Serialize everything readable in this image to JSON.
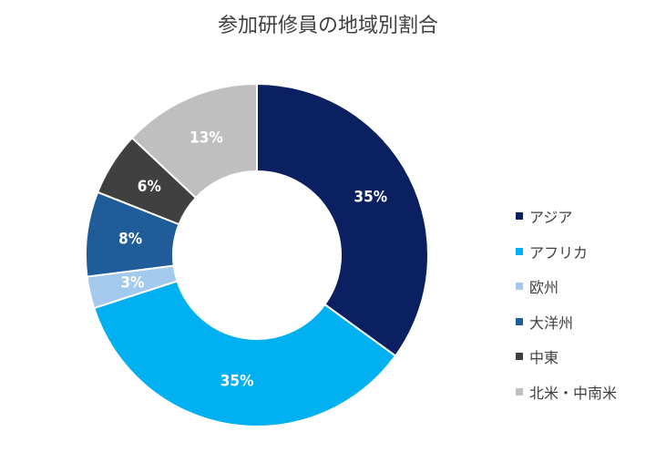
{
  "chart_data": {
    "type": "pie",
    "donut": true,
    "title": "参加研修員の地域別割合",
    "categories": [
      "アジア",
      "アフリカ",
      "欧州",
      "大洋州",
      "中東",
      "北米・中南米"
    ],
    "values": [
      35,
      35,
      3,
      8,
      6,
      13
    ],
    "labels": [
      "35%",
      "35%",
      "3%",
      "8%",
      "6%",
      "13%"
    ],
    "colors": [
      "#0b2061",
      "#00b0f0",
      "#a3c9ec",
      "#1f5c99",
      "#404040",
      "#bfbfbf"
    ],
    "label_colors": [
      "#ffffff",
      "#ffffff",
      "#ffffff",
      "#ffffff",
      "#ffffff",
      "#ffffff"
    ],
    "legend_position": "right"
  }
}
